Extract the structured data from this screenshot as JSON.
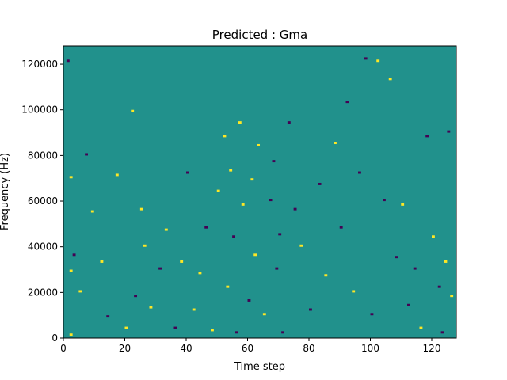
{
  "chart_data": {
    "type": "heatmap",
    "title": "Predicted : Gma",
    "xlabel": "Time step",
    "ylabel": "Frequency (Hz)",
    "xlim": [
      0,
      128
    ],
    "ylim": [
      0,
      128000
    ],
    "x_ticks": [
      0,
      20,
      40,
      60,
      80,
      100,
      120
    ],
    "y_ticks": [
      0,
      20000,
      40000,
      60000,
      80000,
      100000,
      120000
    ],
    "x_tick_labels": [
      "0",
      "20",
      "40",
      "60",
      "80",
      "100",
      "120"
    ],
    "y_tick_labels": [
      "0",
      "20000",
      "40000",
      "60000",
      "80000",
      "100000",
      "120000"
    ],
    "value_levels": [
      -1,
      0,
      1
    ],
    "colors": {
      "-1": "#440154",
      "0": "#21918c",
      "1": "#fde725"
    },
    "background_value": 0,
    "grid": false,
    "legend": "none",
    "approximate_nonzero_cells": [
      {
        "t": 2,
        "f": 1000,
        "v": 1
      },
      {
        "t": 2,
        "f": 29000,
        "v": 1
      },
      {
        "t": 2,
        "f": 70000,
        "v": 1
      },
      {
        "t": 1,
        "f": 121000,
        "v": -1
      },
      {
        "t": 3,
        "f": 36000,
        "v": -1
      },
      {
        "t": 5,
        "f": 20000,
        "v": 1
      },
      {
        "t": 7,
        "f": 80000,
        "v": -1
      },
      {
        "t": 9,
        "f": 55000,
        "v": 1
      },
      {
        "t": 12,
        "f": 33000,
        "v": 1
      },
      {
        "t": 14,
        "f": 9000,
        "v": -1
      },
      {
        "t": 17,
        "f": 71000,
        "v": 1
      },
      {
        "t": 20,
        "f": 4000,
        "v": 1
      },
      {
        "t": 22,
        "f": 99000,
        "v": 1
      },
      {
        "t": 23,
        "f": 18000,
        "v": -1
      },
      {
        "t": 25,
        "f": 56000,
        "v": 1
      },
      {
        "t": 26,
        "f": 40000,
        "v": 1
      },
      {
        "t": 28,
        "f": 13000,
        "v": 1
      },
      {
        "t": 31,
        "f": 30000,
        "v": -1
      },
      {
        "t": 33,
        "f": 47000,
        "v": 1
      },
      {
        "t": 36,
        "f": 4000,
        "v": -1
      },
      {
        "t": 38,
        "f": 33000,
        "v": 1
      },
      {
        "t": 40,
        "f": 72000,
        "v": -1
      },
      {
        "t": 42,
        "f": 12000,
        "v": 1
      },
      {
        "t": 44,
        "f": 28000,
        "v": 1
      },
      {
        "t": 46,
        "f": 48000,
        "v": -1
      },
      {
        "t": 48,
        "f": 3000,
        "v": 1
      },
      {
        "t": 50,
        "f": 64000,
        "v": 1
      },
      {
        "t": 52,
        "f": 88000,
        "v": 1
      },
      {
        "t": 53,
        "f": 22000,
        "v": 1
      },
      {
        "t": 54,
        "f": 73000,
        "v": 1
      },
      {
        "t": 55,
        "f": 44000,
        "v": -1
      },
      {
        "t": 56,
        "f": 2000,
        "v": -1
      },
      {
        "t": 57,
        "f": 94000,
        "v": 1
      },
      {
        "t": 58,
        "f": 58000,
        "v": 1
      },
      {
        "t": 60,
        "f": 16000,
        "v": -1
      },
      {
        "t": 61,
        "f": 69000,
        "v": 1
      },
      {
        "t": 62,
        "f": 36000,
        "v": 1
      },
      {
        "t": 63,
        "f": 84000,
        "v": 1
      },
      {
        "t": 65,
        "f": 10000,
        "v": 1
      },
      {
        "t": 67,
        "f": 60000,
        "v": -1
      },
      {
        "t": 68,
        "f": 77000,
        "v": -1
      },
      {
        "t": 69,
        "f": 30000,
        "v": -1
      },
      {
        "t": 70,
        "f": 45000,
        "v": -1
      },
      {
        "t": 71,
        "f": 2000,
        "v": -1
      },
      {
        "t": 73,
        "f": 94000,
        "v": -1
      },
      {
        "t": 75,
        "f": 56000,
        "v": -1
      },
      {
        "t": 77,
        "f": 40000,
        "v": 1
      },
      {
        "t": 80,
        "f": 12000,
        "v": -1
      },
      {
        "t": 83,
        "f": 67000,
        "v": -1
      },
      {
        "t": 85,
        "f": 27000,
        "v": 1
      },
      {
        "t": 88,
        "f": 85000,
        "v": 1
      },
      {
        "t": 90,
        "f": 48000,
        "v": -1
      },
      {
        "t": 92,
        "f": 103000,
        "v": -1
      },
      {
        "t": 94,
        "f": 20000,
        "v": 1
      },
      {
        "t": 96,
        "f": 72000,
        "v": -1
      },
      {
        "t": 98,
        "f": 122000,
        "v": -1
      },
      {
        "t": 100,
        "f": 10000,
        "v": -1
      },
      {
        "t": 102,
        "f": 121000,
        "v": 1
      },
      {
        "t": 104,
        "f": 60000,
        "v": -1
      },
      {
        "t": 106,
        "f": 113000,
        "v": 1
      },
      {
        "t": 108,
        "f": 35000,
        "v": -1
      },
      {
        "t": 110,
        "f": 58000,
        "v": 1
      },
      {
        "t": 112,
        "f": 14000,
        "v": -1
      },
      {
        "t": 114,
        "f": 30000,
        "v": -1
      },
      {
        "t": 116,
        "f": 4000,
        "v": 1
      },
      {
        "t": 118,
        "f": 88000,
        "v": -1
      },
      {
        "t": 120,
        "f": 44000,
        "v": 1
      },
      {
        "t": 122,
        "f": 22000,
        "v": -1
      },
      {
        "t": 123,
        "f": 2000,
        "v": -1
      },
      {
        "t": 124,
        "f": 33000,
        "v": 1
      },
      {
        "t": 125,
        "f": 90000,
        "v": -1
      },
      {
        "t": 126,
        "f": 18000,
        "v": 1
      }
    ]
  }
}
